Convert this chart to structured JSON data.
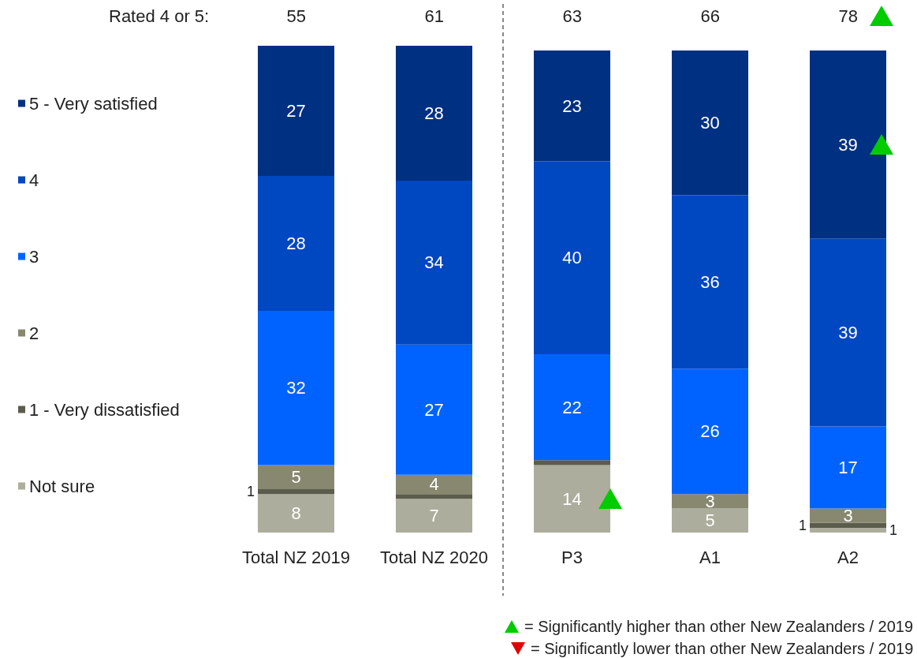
{
  "chart_data": {
    "type": "bar",
    "stacked": true,
    "categories": [
      "Total NZ 2019",
      "Total NZ 2020",
      "P3",
      "A1",
      "A2"
    ],
    "series": [
      {
        "name": "Not sure",
        "color": "#adad9d",
        "values": [
          8,
          7,
          14,
          5,
          1
        ],
        "value_labels": [
          "8",
          "7",
          "14",
          "5",
          "1"
        ]
      },
      {
        "name": "1 - Very dissatisfied",
        "color": "#5c5c4c",
        "values": [
          1,
          1,
          1,
          null,
          1
        ],
        "value_labels": [
          "1",
          null,
          null,
          null,
          "1"
        ]
      },
      {
        "name": "2",
        "color": "#888870",
        "values": [
          5,
          4,
          null,
          3,
          3
        ],
        "value_labels": [
          "5",
          "4",
          null,
          "3",
          "3"
        ]
      },
      {
        "name": "3",
        "color": "#0063ff",
        "values": [
          32,
          27,
          22,
          26,
          17
        ],
        "value_labels": [
          "32",
          "27",
          "22",
          "26",
          "17"
        ]
      },
      {
        "name": "4",
        "color": "#0047c2",
        "values": [
          28,
          34,
          40,
          36,
          39
        ],
        "value_labels": [
          "28",
          "34",
          "40",
          "36",
          "39"
        ]
      },
      {
        "name": "5 - Very satisfied",
        "color": "#003082",
        "values": [
          27,
          28,
          23,
          30,
          39
        ],
        "value_labels": [
          "27",
          "28",
          "23",
          "30",
          "39"
        ]
      }
    ],
    "legend": "left",
    "annotations": [
      "Rated 4 or 5:",
      "= Significantly higher than other New Zealanders / 2019",
      "= Significantly lower than other New Zealanders / 2019",
      "55",
      "61",
      "63",
      "66",
      "78"
    ]
  }
}
